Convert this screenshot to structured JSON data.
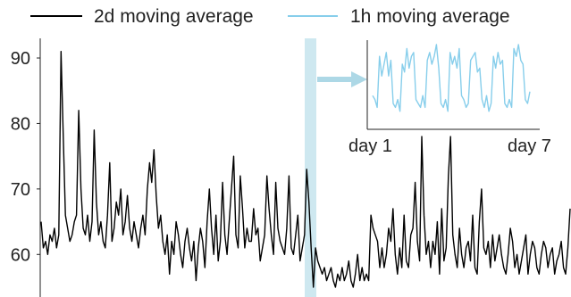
{
  "chart_data": [
    {
      "type": "line",
      "title": "",
      "xlabel": "",
      "ylabel": "",
      "ylim": [
        53.5,
        93
      ],
      "yticks": [
        60,
        70,
        80,
        90
      ],
      "grid": false,
      "legend": {
        "placement": "top",
        "entries": [
          {
            "label": "2d moving average",
            "color": "#000000"
          },
          {
            "label": "1h moving average",
            "color": "#87ceeb"
          }
        ]
      },
      "highlight_band": {
        "color": "#add8e6",
        "note": "vertical band marking the zoomed region"
      },
      "series": [
        {
          "name": "2d moving average",
          "color": "#000000",
          "values": [
            65,
            61,
            62,
            60,
            63,
            62,
            64,
            61,
            63,
            91,
            78,
            66,
            64,
            62,
            63,
            65,
            66,
            82,
            70,
            64,
            63,
            66,
            62,
            65,
            79,
            68,
            63,
            65,
            62,
            61,
            66,
            74,
            62,
            64,
            68,
            66,
            70,
            63,
            65,
            69,
            64,
            62,
            65,
            63,
            61,
            64,
            66,
            63,
            70,
            74,
            71,
            76,
            69,
            64,
            66,
            62,
            60,
            63,
            57,
            62,
            60,
            65,
            63,
            60,
            58,
            62,
            64,
            61,
            59,
            62,
            56,
            61,
            64,
            62,
            58,
            65,
            70,
            64,
            60,
            66,
            59,
            62,
            71,
            63,
            60,
            65,
            70,
            75,
            63,
            61,
            72,
            67,
            61,
            64,
            62,
            62,
            67,
            63,
            64,
            59,
            61,
            63,
            72,
            67,
            63,
            60,
            71,
            64,
            62,
            61,
            60,
            64,
            72,
            61,
            60,
            63,
            66,
            59,
            61,
            63,
            73,
            68,
            61,
            55,
            61,
            59,
            58,
            57,
            58,
            56,
            57,
            58,
            56,
            55,
            57,
            56,
            58,
            56,
            57,
            59,
            56,
            55,
            57,
            60,
            56,
            58,
            56,
            57,
            56,
            66,
            64,
            63,
            62,
            58,
            61,
            58,
            60,
            64,
            62,
            67,
            60,
            57,
            61,
            58,
            66,
            59,
            58,
            63,
            64,
            71,
            62,
            59,
            78,
            66,
            60,
            62,
            58,
            62,
            60,
            65,
            57,
            67,
            59,
            61,
            72,
            78,
            63,
            60,
            58,
            64,
            60,
            58,
            61,
            62,
            59,
            66,
            58,
            57,
            65,
            70,
            61,
            60,
            62,
            58,
            63,
            59,
            61,
            63,
            60,
            58,
            57,
            60,
            64,
            62,
            58,
            60,
            57,
            59,
            61,
            63,
            57,
            60,
            62,
            61,
            58,
            57,
            60,
            62,
            61,
            58,
            60,
            61,
            57,
            59,
            60,
            62,
            58,
            57,
            61,
            67
          ]
        }
      ]
    },
    {
      "type": "line",
      "title": "",
      "xlabel": "",
      "ylabel": "",
      "xticks": [
        "day 1",
        "day 7"
      ],
      "grid": false,
      "series": [
        {
          "name": "1h moving average",
          "color": "#87ceeb",
          "values": [
            0.35,
            0.3,
            0.2,
            0.85,
            0.6,
            0.75,
            0.9,
            0.6,
            0.8,
            0.25,
            0.2,
            0.3,
            0.15,
            0.75,
            0.65,
            0.95,
            0.7,
            0.85,
            0.9,
            0.3,
            0.25,
            0.2,
            0.35,
            0.2,
            0.8,
            0.9,
            0.75,
            0.85,
            1.0,
            0.7,
            0.25,
            0.2,
            0.3,
            0.15,
            0.9,
            0.75,
            0.85,
            0.7,
            0.95,
            0.35,
            0.3,
            0.2,
            0.25,
            0.8,
            0.85,
            0.9,
            0.65,
            0.7,
            0.3,
            0.2,
            0.35,
            0.15,
            0.25,
            0.85,
            0.7,
            0.9,
            0.75,
            0.8,
            0.25,
            0.2,
            0.3,
            0.2,
            0.95,
            0.85,
            1.0,
            0.8,
            0.75,
            0.3,
            0.25,
            0.4
          ]
        }
      ]
    }
  ]
}
